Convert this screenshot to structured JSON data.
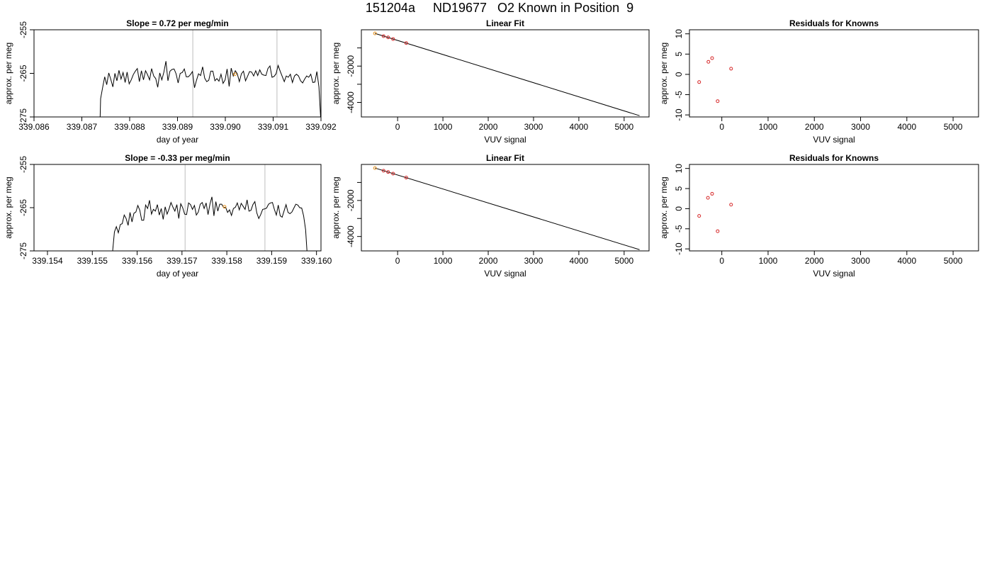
{
  "page_title": "151204a     ND19677   O2 Known in Position  9",
  "colors": {
    "trace": "#000000",
    "marker_known": "#e8931e",
    "residual_point": "#d62728",
    "reference_line": "#c8c8c8",
    "axis": "#000000"
  },
  "chart_data": [
    {
      "type": "line",
      "title": "Slope =  0.72  per meg/min",
      "xlabel": "day of year",
      "ylabel": "approx. per meg",
      "xlim": [
        339.086,
        339.092
      ],
      "ylim": [
        -275,
        -255
      ],
      "xticks": [
        "339.086",
        "339.087",
        "339.088",
        "339.089",
        "339.090",
        "339.091",
        "339.092"
      ],
      "yticks": [
        "-255",
        "-265",
        "-275"
      ],
      "ytick_values": [
        -255,
        -265,
        -275
      ],
      "reference_lines_x": [
        339.08932,
        339.09108
      ],
      "x_start": 339.08735,
      "x_end": 339.092,
      "y_points": [
        -289.0,
        -270.8,
        -268.2,
        -265.8,
        -267.6,
        -264.9,
        -266.4,
        -268.1,
        -265.0,
        -266.7,
        -264.3,
        -266.3,
        -264.8,
        -267.1,
        -264.7,
        -267.4,
        -266.5,
        -265.3,
        -264.5,
        -263.9,
        -266.9,
        -264.4,
        -266.5,
        -264.4,
        -265.3,
        -266.5,
        -263.9,
        -265.6,
        -266.2,
        -268.2,
        -264.9,
        -266.5,
        -264.7,
        -262.2,
        -266.7,
        -264.5,
        -264.1,
        -264.0,
        -265.1,
        -267.2,
        -265.0,
        -264.8,
        -264.0,
        -265.8,
        -265.8,
        -265.3,
        -264.6,
        -268.3,
        -266.6,
        -265.1,
        -265.5,
        -263.5,
        -266.1,
        -266.9,
        -266.6,
        -264.5,
        -264.5,
        -266.7,
        -266.2,
        -266.8,
        -265.2,
        -267.3,
        -266.5,
        -264.0,
        -268.0,
        -263.8,
        -265.6,
        -264.4,
        -265.1,
        -266.9,
        -265.1,
        -264.5,
        -266.7,
        -265.7,
        -264.6,
        -264.7,
        -265.6,
        -264.4,
        -265.5,
        -264.2,
        -265.2,
        -265.4,
        -265.5,
        -263.9,
        -263.3,
        -265.9,
        -265.7,
        -265.1,
        -263.2,
        -264.5,
        -265.7,
        -266.9,
        -265.6,
        -265.9,
        -265.2,
        -267.1,
        -265.6,
        -265.2,
        -265.6,
        -266.7,
        -267.2,
        -266.3,
        -265.6,
        -265.9,
        -265.2,
        -267.1,
        -267.0,
        -264.6,
        -268.1,
        -276.5
      ],
      "marker": {
        "x": 339.0902,
        "y": -265.2
      }
    },
    {
      "type": "scatter",
      "title": "Linear Fit",
      "xlabel": "VUV signal",
      "ylabel": "approx. per meg",
      "xlim": [
        -800,
        5550
      ],
      "ylim": [
        -4800,
        0
      ],
      "xticks": [
        "0",
        "1000",
        "2000",
        "3000",
        "4000",
        "5000"
      ],
      "xtick_values": [
        0,
        1000,
        2000,
        3000,
        4000,
        5000
      ],
      "yticks": [
        "-2000",
        "-4000"
      ],
      "ytick_values": [
        -2000,
        -4000
      ],
      "yminor_ticks": [
        -1000,
        -3000
      ],
      "fit_line": {
        "x": [
          -500,
          5340
        ],
        "y": [
          -200,
          -4730
        ]
      },
      "points": [
        {
          "x": -500,
          "y": -200,
          "role": "known"
        },
        {
          "x": -310,
          "y": -350
        },
        {
          "x": -210,
          "y": -420
        },
        {
          "x": -100,
          "y": -510
        },
        {
          "x": 190,
          "y": -730
        }
      ]
    },
    {
      "type": "scatter",
      "title": "Residuals for Knowns",
      "xlabel": "VUV signal",
      "ylabel": "approx. per meg",
      "xlim": [
        -700,
        5550
      ],
      "ylim": [
        -10.5,
        11
      ],
      "xticks": [
        "0",
        "1000",
        "2000",
        "3000",
        "4000",
        "5000"
      ],
      "xtick_values": [
        0,
        1000,
        2000,
        3000,
        4000,
        5000
      ],
      "yticks": [
        "10",
        "5",
        "0",
        "-5",
        "-10"
      ],
      "ytick_values": [
        10,
        5,
        0,
        -5,
        -10
      ],
      "points": [
        {
          "x": -490,
          "y": -1.9
        },
        {
          "x": -290,
          "y": 3.1
        },
        {
          "x": -210,
          "y": 4.0
        },
        {
          "x": -90,
          "y": -6.6
        },
        {
          "x": 200,
          "y": 1.4
        }
      ]
    },
    {
      "type": "line",
      "title": "Slope =  -0.33  per meg/min",
      "xlabel": "day of year",
      "ylabel": "approx. per meg",
      "xlim": [
        339.1537,
        339.1601
      ],
      "ylim": [
        -275,
        -255
      ],
      "xticks": [
        "339.154",
        "339.155",
        "339.156",
        "339.157",
        "339.158",
        "339.159",
        "339.160"
      ],
      "xtick_values": [
        339.154,
        339.155,
        339.156,
        339.157,
        339.158,
        339.159,
        339.16
      ],
      "yticks": [
        "-255",
        "-265",
        "-275"
      ],
      "ytick_values": [
        -255,
        -265,
        -275
      ],
      "reference_lines_x": [
        339.15707,
        339.15885
      ],
      "x_start": 339.15545,
      "x_end": 339.1598,
      "y_points": [
        -275.5,
        -270.6,
        -269.4,
        -270.8,
        -268.9,
        -268.7,
        -266.7,
        -267.5,
        -269.1,
        -266.1,
        -268.3,
        -266.3,
        -266.0,
        -264.5,
        -265.6,
        -267.9,
        -267.9,
        -264.4,
        -265.2,
        -263.3,
        -266.5,
        -265.4,
        -265.8,
        -264.3,
        -266.7,
        -265.2,
        -267.7,
        -264.8,
        -266.5,
        -265.3,
        -263.8,
        -264.9,
        -265.8,
        -264.3,
        -267.5,
        -264.1,
        -265.0,
        -266.5,
        -266.6,
        -263.9,
        -264.3,
        -265.4,
        -264.5,
        -266.7,
        -266.0,
        -264.2,
        -263.8,
        -265.2,
        -263.9,
        -266.6,
        -264.1,
        -262.5,
        -266.9,
        -263.6,
        -265.8,
        -264.2,
        -264.2,
        -265.0,
        -264.9,
        -266.1,
        -265.5,
        -266.8,
        -265.2,
        -264.9,
        -263.9,
        -265.5,
        -264.0,
        -264.7,
        -265.4,
        -263.2,
        -265.8,
        -265.6,
        -264.3,
        -263.6,
        -266.2,
        -267.5,
        -266.6,
        -265.4,
        -265.3,
        -265.1,
        -264.2,
        -263.9,
        -263.8,
        -265.4,
        -266.7,
        -264.4,
        -266.9,
        -267.2,
        -265.7,
        -264.3,
        -266.1,
        -266.4,
        -266.0,
        -265.1,
        -264.2,
        -264.4,
        -265.0,
        -265.1,
        -266.9,
        -270.1,
        -277.0
      ],
      "marker": {
        "x": 339.15795,
        "y": -264.8
      }
    },
    {
      "type": "scatter",
      "title": "Linear Fit",
      "xlabel": "VUV signal",
      "ylabel": "approx. per meg",
      "xlim": [
        -800,
        5550
      ],
      "ylim": [
        -4800,
        0
      ],
      "xticks": [
        "0",
        "1000",
        "2000",
        "3000",
        "4000",
        "5000"
      ],
      "xtick_values": [
        0,
        1000,
        2000,
        3000,
        4000,
        5000
      ],
      "yticks": [
        "-2000",
        "-4000"
      ],
      "ytick_values": [
        -2000,
        -4000
      ],
      "yminor_ticks": [
        -1000,
        -3000
      ],
      "fit_line": {
        "x": [
          -500,
          5340
        ],
        "y": [
          -200,
          -4730
        ]
      },
      "points": [
        {
          "x": -500,
          "y": -200,
          "role": "known"
        },
        {
          "x": -310,
          "y": -350
        },
        {
          "x": -210,
          "y": -420
        },
        {
          "x": -100,
          "y": -510
        },
        {
          "x": 190,
          "y": -730
        }
      ]
    },
    {
      "type": "scatter",
      "title": "Residuals for Knowns",
      "xlabel": "VUV signal",
      "ylabel": "approx. per meg",
      "xlim": [
        -700,
        5550
      ],
      "ylim": [
        -10.5,
        11
      ],
      "xticks": [
        "0",
        "1000",
        "2000",
        "3000",
        "4000",
        "5000"
      ],
      "xtick_values": [
        0,
        1000,
        2000,
        3000,
        4000,
        5000
      ],
      "yticks": [
        "10",
        "5",
        "0",
        "-5",
        "-10"
      ],
      "ytick_values": [
        10,
        5,
        0,
        -5,
        -10
      ],
      "points": [
        {
          "x": -490,
          "y": -1.8
        },
        {
          "x": -300,
          "y": 2.7
        },
        {
          "x": -210,
          "y": 3.7
        },
        {
          "x": -90,
          "y": -5.6
        },
        {
          "x": 200,
          "y": 1.0
        }
      ]
    }
  ]
}
